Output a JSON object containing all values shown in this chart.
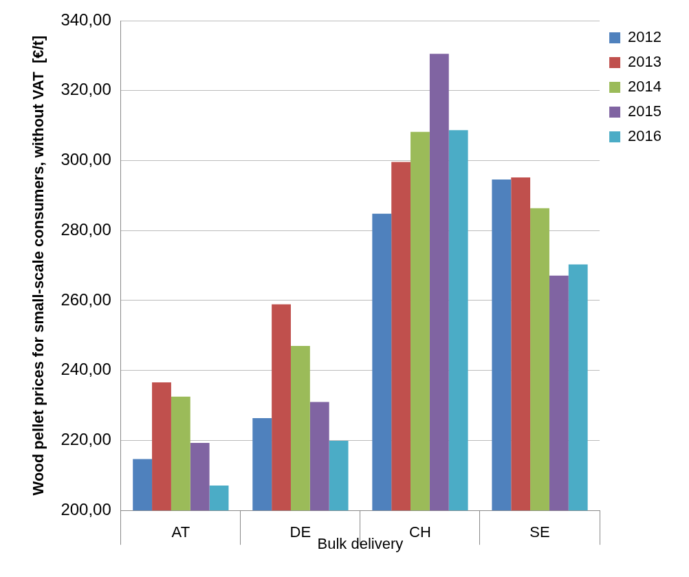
{
  "chart_data": {
    "type": "bar",
    "xlabel": "Bulk delivery",
    "ylabel": "Wood pellet prices for small-scale consumers, without VAT  [€/t]",
    "categories": [
      "AT",
      "DE",
      "CH",
      "SE"
    ],
    "series": [
      {
        "name": "2012",
        "color": "#4f81bd",
        "values": [
          214.7,
          226.4,
          284.8,
          294.6
        ]
      },
      {
        "name": "2013",
        "color": "#c0504d",
        "values": [
          236.6,
          258.9,
          299.6,
          295.2
        ]
      },
      {
        "name": "2014",
        "color": "#9bbb59",
        "values": [
          232.5,
          247.0,
          308.2,
          286.4
        ]
      },
      {
        "name": "2015",
        "color": "#8064a2",
        "values": [
          219.3,
          231.0,
          330.5,
          267.1
        ]
      },
      {
        "name": "2016",
        "color": "#4bacc6",
        "values": [
          207.1,
          219.9,
          308.7,
          270.3
        ]
      }
    ],
    "ylim": [
      200,
      340
    ],
    "yticks": [
      {
        "value": 200,
        "label": "200,00"
      },
      {
        "value": 220,
        "label": "220,00"
      },
      {
        "value": 240,
        "label": "240,00"
      },
      {
        "value": 260,
        "label": "260,00"
      },
      {
        "value": 280,
        "label": "280,00"
      },
      {
        "value": 300,
        "label": "300,00"
      },
      {
        "value": 320,
        "label": "320,00"
      },
      {
        "value": 340,
        "label": "340,00"
      }
    ],
    "grid": "y",
    "legend": "right"
  }
}
